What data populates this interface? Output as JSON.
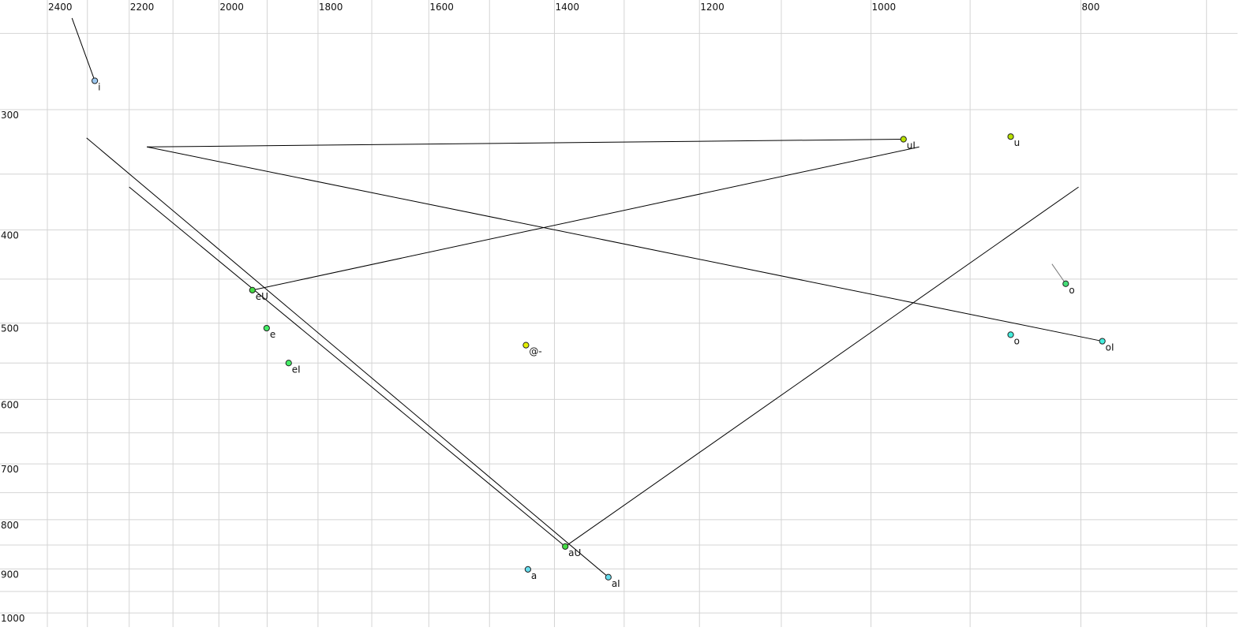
{
  "chart_data": {
    "type": "scatter",
    "title": "",
    "xlabel": "",
    "ylabel": "",
    "x_scale": "log",
    "y_scale": "log",
    "x_reversed": true,
    "xlim": [
      2400,
      700
    ],
    "ylim": [
      250,
      1000
    ],
    "grid": true,
    "x_grid_step": 100,
    "y_grid_step": 50,
    "x_ticks": [
      2400,
      2200,
      2000,
      1800,
      1600,
      1400,
      1200,
      1000,
      800
    ],
    "x_tick_labels": [
      "2400",
      "2200",
      "2000",
      "1800",
      "1600",
      "1400",
      "1200",
      "1000",
      "800"
    ],
    "y_ticks": [
      300,
      400,
      500,
      600,
      700,
      800,
      900,
      1000
    ],
    "y_tick_labels": [
      "300",
      "400",
      "500",
      "600",
      "700",
      "800",
      "900",
      "1000"
    ],
    "points": [
      {
        "label": "i",
        "x": 2282,
        "y": 280,
        "color": "#9cc8f0"
      },
      {
        "label": "uI",
        "x": 966,
        "y": 322,
        "color": "#b8e000"
      },
      {
        "label": "u",
        "x": 862,
        "y": 320,
        "color": "#b8e000"
      },
      {
        "label": "eU",
        "x": 1930,
        "y": 462,
        "color": "#44dd44"
      },
      {
        "label": "e",
        "x": 1901,
        "y": 506,
        "color": "#44ee66"
      },
      {
        "label": "eI",
        "x": 1857,
        "y": 550,
        "color": "#44ee66"
      },
      {
        "label": "@-",
        "x": 1443,
        "y": 527,
        "color": "#e4f000"
      },
      {
        "label": "o",
        "x": 813,
        "y": 455,
        "color": "#44dd77",
        "label_color": "#8a8aa0"
      },
      {
        "label": "o",
        "x": 862,
        "y": 514,
        "color": "#44eedd"
      },
      {
        "label": "oI",
        "x": 782,
        "y": 522,
        "color": "#44eedd"
      },
      {
        "label": "aU",
        "x": 1384,
        "y": 853,
        "color": "#44dd44"
      },
      {
        "label": "a",
        "x": 1440,
        "y": 901,
        "color": "#66ddee"
      },
      {
        "label": "aI",
        "x": 1322,
        "y": 918,
        "color": "#66ddee"
      }
    ],
    "trajectories": [
      {
        "from": [
          2338,
          241
        ],
        "to": [
          2282,
          280
        ],
        "color": "#000000"
      },
      {
        "from": [
          2159,
          328
        ],
        "to": [
          966,
          322
        ],
        "color": "#000000"
      },
      {
        "from": [
          2159,
          328
        ],
        "to": [
          782,
          522
        ],
        "color": "#000000"
      },
      {
        "from": [
          950,
          328
        ],
        "to": [
          1930,
          462
        ],
        "color": "#000000"
      },
      {
        "from": [
          2302,
          321
        ],
        "to": [
          1322,
          918
        ],
        "color": "#000000"
      },
      {
        "from": [
          2200,
          361
        ],
        "to": [
          1384,
          853
        ],
        "color": "#000000"
      },
      {
        "from": [
          1384,
          853
        ],
        "to": [
          802,
          361
        ],
        "color": "#000000"
      },
      {
        "from": [
          825,
          434
        ],
        "to": [
          813,
          455
        ],
        "color": "#777777"
      }
    ]
  }
}
